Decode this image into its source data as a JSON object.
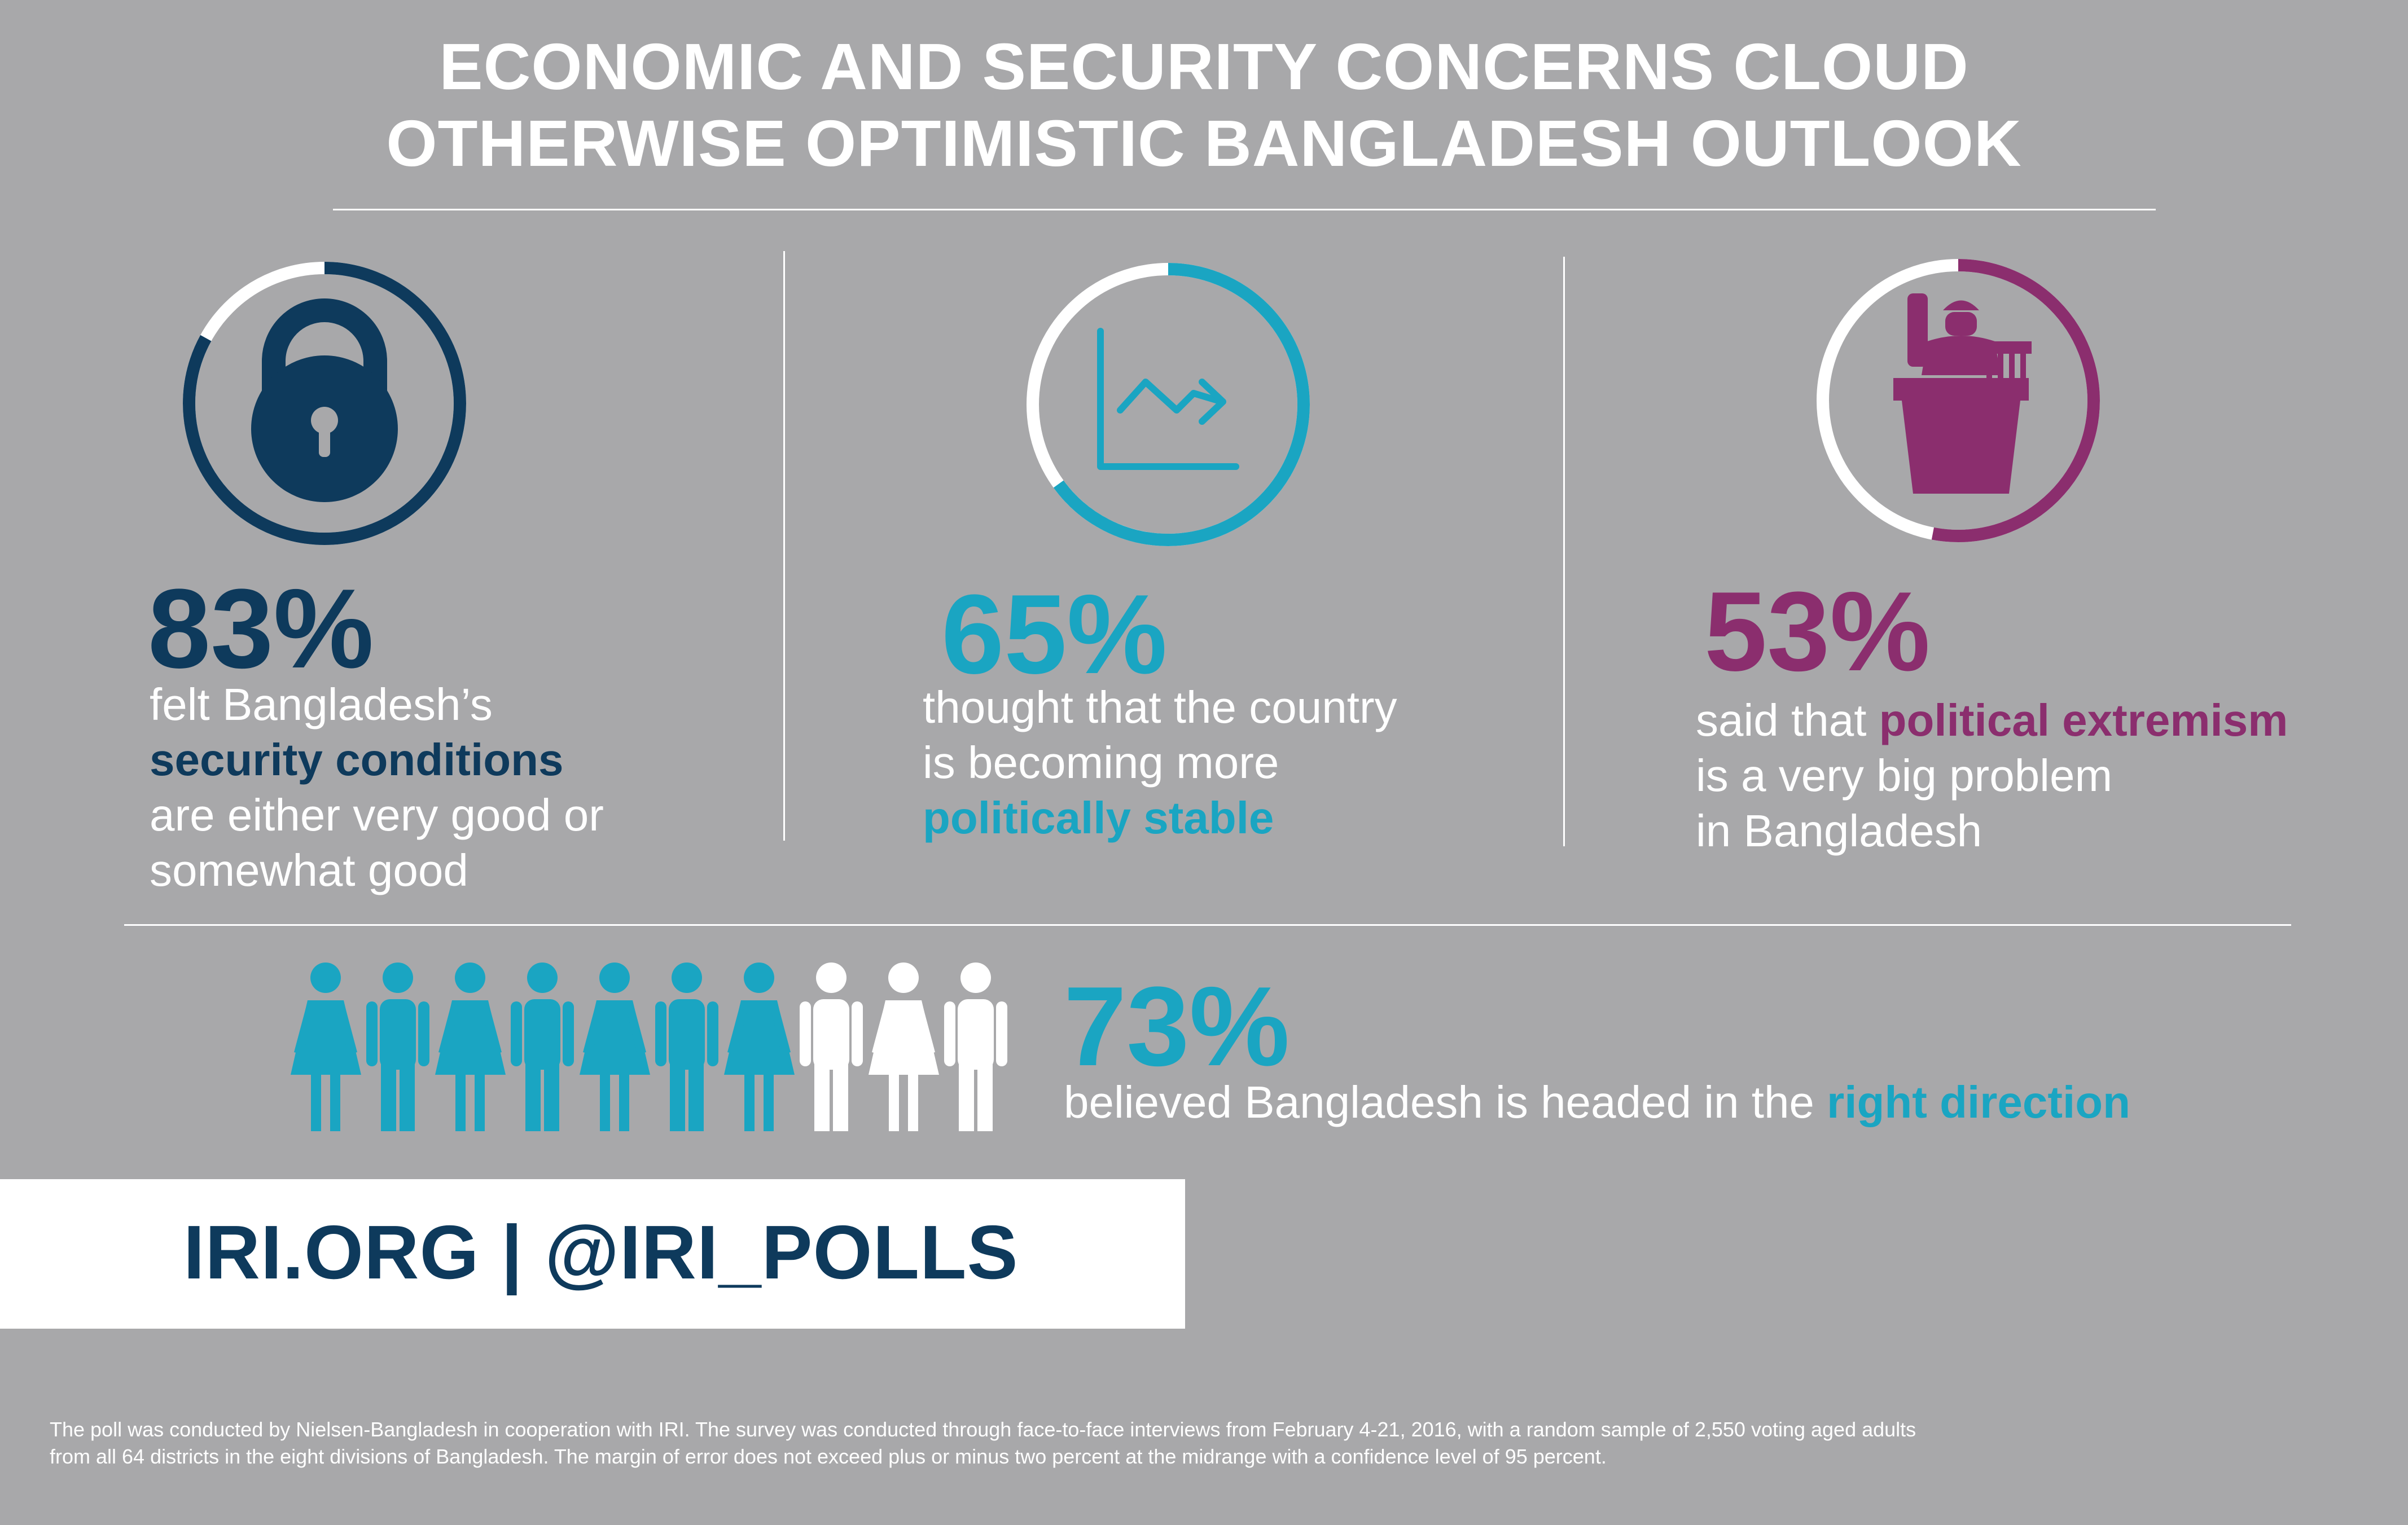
{
  "header": {
    "title_line1": "ECONOMIC AND SECURITY CONCERNS CLOUD",
    "title_line2": "OTHERWISE OPTIMISTIC BANGLADESH OUTLOOK"
  },
  "colors": {
    "background": "#a8a8aa",
    "navy": "#0e3a5c",
    "teal": "#1aa5c2",
    "purple": "#8b2e6e",
    "white": "#ffffff"
  },
  "stats": [
    {
      "value": 83,
      "label": "83%",
      "icon": "padlock-icon",
      "line1": "felt Bangladesh’s",
      "highlight": "security conditions",
      "line3": "are either very good or",
      "line4": "somewhat good"
    },
    {
      "value": 65,
      "label": "65%",
      "icon": "trend-chart-icon",
      "line1": "thought that the country",
      "line2": "is becoming more",
      "highlight": "politically stable"
    },
    {
      "value": 53,
      "label": "53%",
      "icon": "podium-speaker-icon",
      "prefix": "said that ",
      "highlight": "political extremism",
      "line2": "is a very big problem",
      "line3": "in Bangladesh"
    }
  ],
  "direction": {
    "value": 73,
    "label": "73%",
    "icon": "people-icon",
    "figures_total": 10,
    "figures_filled": 7,
    "text": "believed Bangladesh is headed in the ",
    "highlight": "right direction"
  },
  "footer": {
    "links": "IRI.ORG  |  @IRI_POLLS",
    "note_line1": "The poll was conducted by Nielsen-Bangladesh in cooperation with IRI. The survey was conducted through face-to-face interviews from February 4-21, 2016, with a random sample of 2,550 voting aged adults",
    "note_line2": "from all 64 districts in the eight divisions of Bangladesh. The margin of error does not exceed plus or minus two percent at the midrange with a confidence level of 95 percent."
  }
}
